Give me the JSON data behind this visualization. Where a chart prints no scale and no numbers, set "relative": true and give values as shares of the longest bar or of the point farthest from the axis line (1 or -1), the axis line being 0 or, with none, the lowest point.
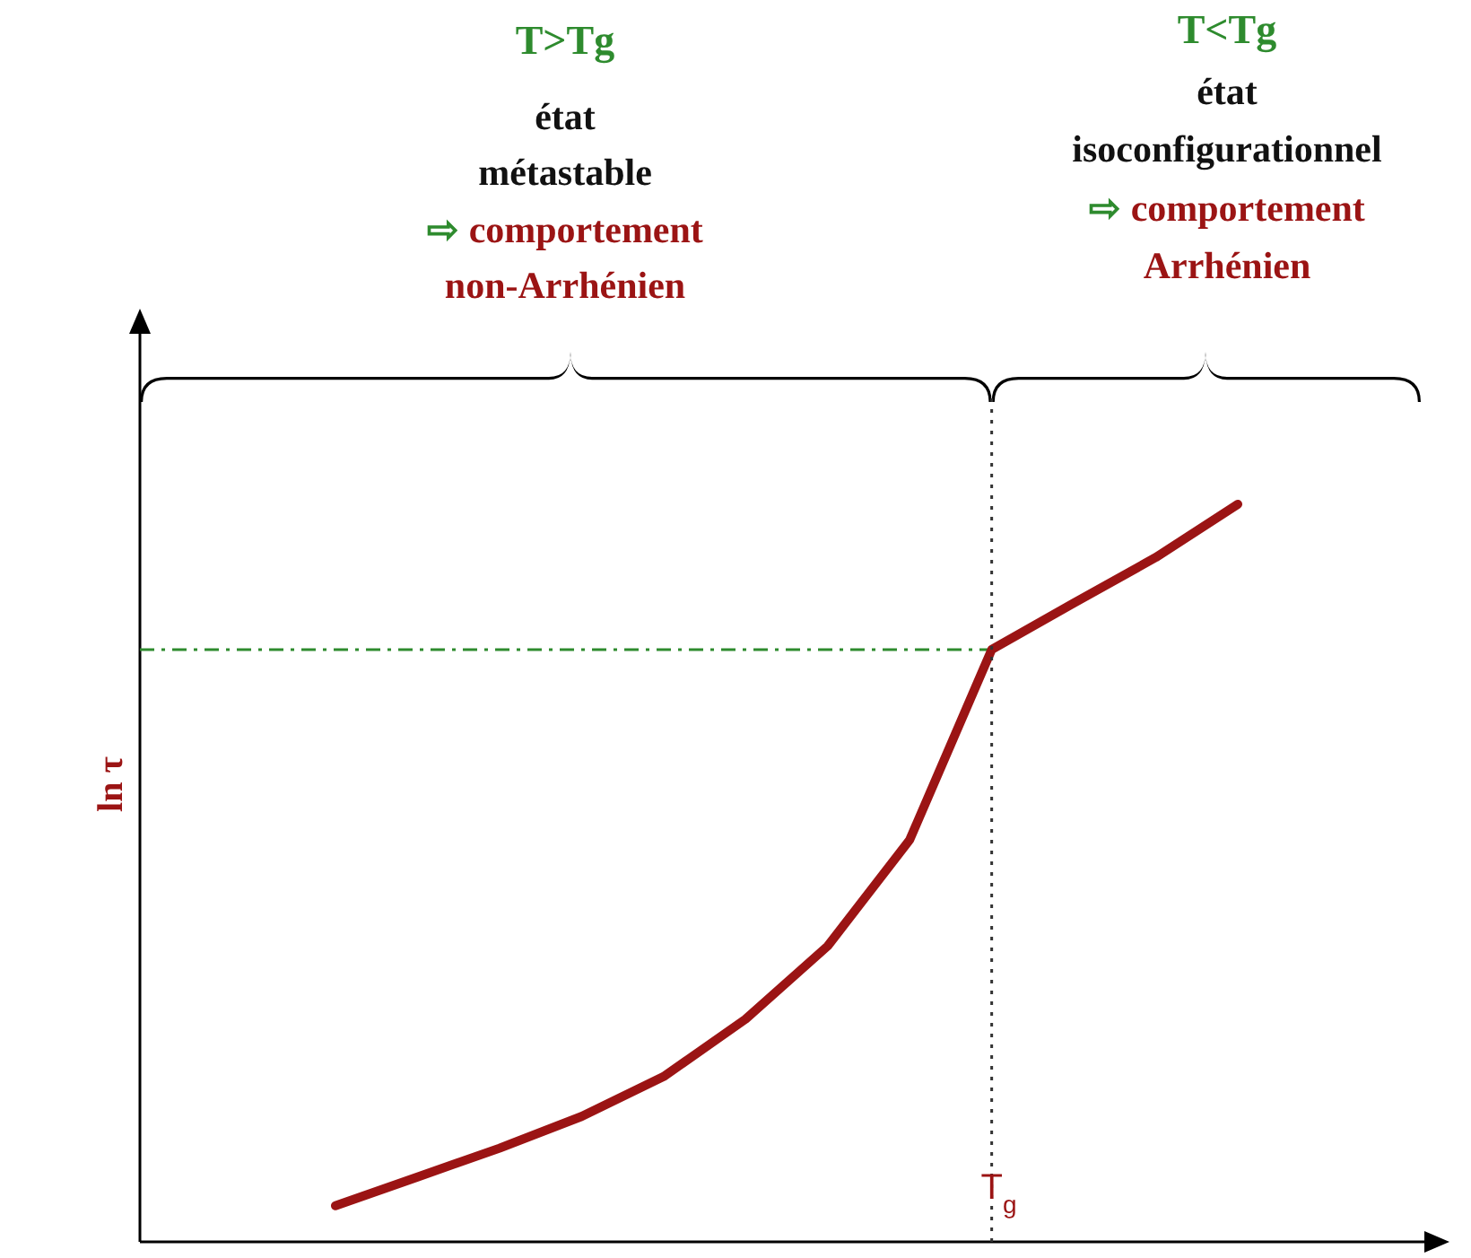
{
  "chart_data": {
    "type": "line",
    "relative": true,
    "ylabel": "ln τ",
    "categories": [
      null,
      null,
      null,
      null,
      null,
      null,
      null,
      null,
      null,
      null,
      null,
      null
    ],
    "series": [
      {
        "color": "#9b1414",
        "values": [
          0.049,
          0.088,
          0.127,
          0.17,
          0.224,
          0.302,
          0.401,
          0.545,
          0.803,
          0.866,
          0.928,
          1
        ]
      }
    ],
    "ref_lines": [
      {
        "axis": "y",
        "value": 0.803,
        "color": "#2e8b2e",
        "line_style": "dashdot"
      }
    ],
    "annotations": [
      "T>Tg\nétat\nmétastable\n⇨ comportement\nnon-Arrhénien",
      "T<Tg\nétat\nisoconfigurationnel\n⇨ comportement\nArrhénien",
      "T$_{g}$"
    ],
    "marker": "none",
    "line_style": "solid"
  }
}
